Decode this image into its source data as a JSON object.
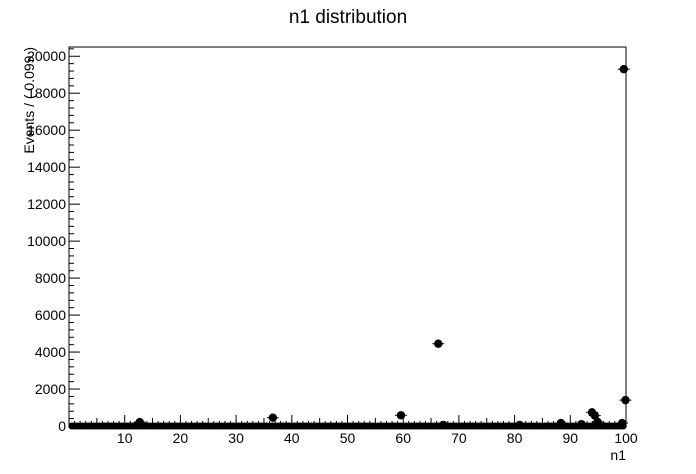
{
  "chart_data": {
    "type": "scatter",
    "title": "n1 distribution",
    "xlabel": "n1",
    "ylabel": "Events / ( 0.099 )",
    "xlim": [
      0,
      100
    ],
    "ylim": [
      0,
      20500
    ],
    "x_ticks": [
      10,
      20,
      30,
      40,
      50,
      60,
      70,
      80,
      90,
      100
    ],
    "y_ticks": [
      0,
      2000,
      4000,
      6000,
      8000,
      10000,
      12000,
      14000,
      16000,
      18000,
      20000
    ],
    "grid": false,
    "marker_color": "#000000",
    "points": [
      {
        "x": 12.7,
        "y": 210
      },
      {
        "x": 36.6,
        "y": 450
      },
      {
        "x": 59.6,
        "y": 580
      },
      {
        "x": 66.3,
        "y": 4450
      },
      {
        "x": 67.2,
        "y": 60
      },
      {
        "x": 80.9,
        "y": 60
      },
      {
        "x": 88.3,
        "y": 160
      },
      {
        "x": 92.0,
        "y": 100
      },
      {
        "x": 93.9,
        "y": 740
      },
      {
        "x": 94.4,
        "y": 560
      },
      {
        "x": 94.9,
        "y": 220
      },
      {
        "x": 99.3,
        "y": 160
      },
      {
        "x": 99.6,
        "y": 19300
      },
      {
        "x": 99.9,
        "y": 1400
      }
    ],
    "baseline_value": 0
  }
}
